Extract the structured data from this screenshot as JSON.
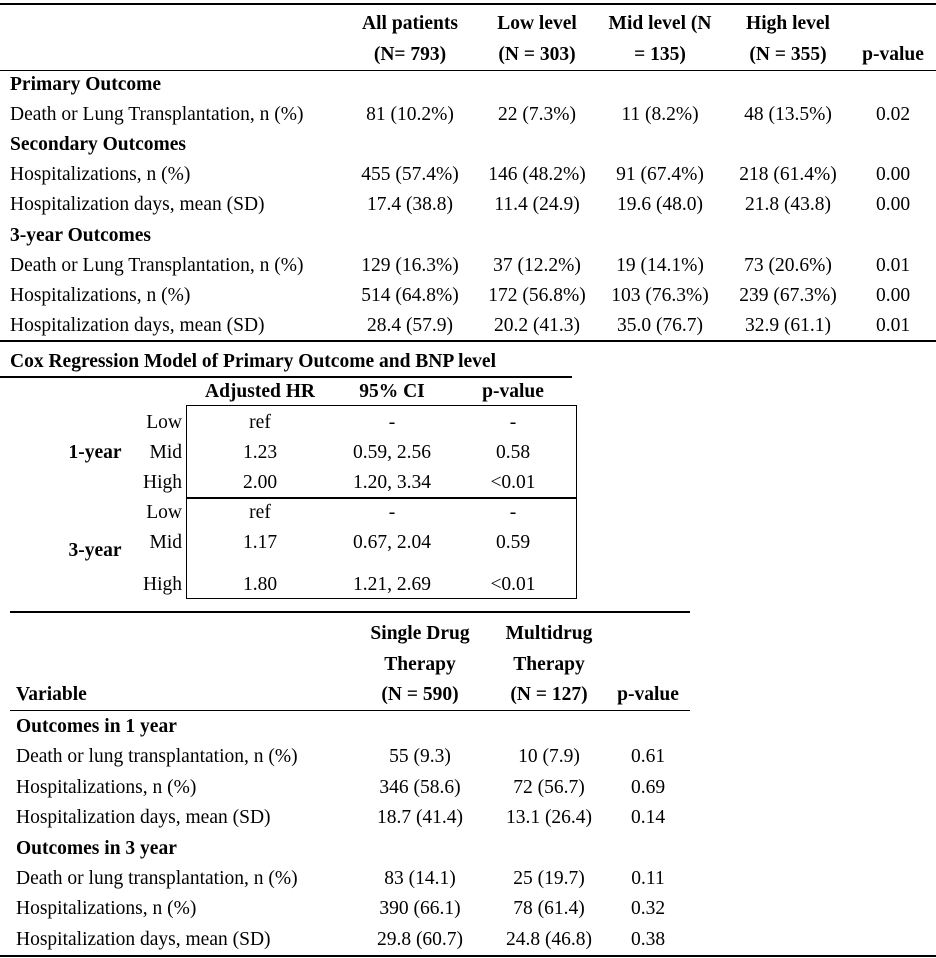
{
  "table1": {
    "headers": [
      [
        "All patients",
        "(N= 793)"
      ],
      [
        "Low level",
        "(N = 303)"
      ],
      [
        "Mid level (N",
        "= 135)"
      ],
      [
        "High level",
        "(N = 355)"
      ],
      [
        "p-value"
      ]
    ],
    "sections": [
      {
        "title": "Primary Outcome",
        "rows": [
          [
            "Death or Lung Transplantation, n (%)",
            "81 (10.2%)",
            "22 (7.3%)",
            "11 (8.2%)",
            "48 (13.5%)",
            "0.02"
          ]
        ]
      },
      {
        "title": "Secondary Outcomes",
        "rows": [
          [
            "Hospitalizations, n (%)",
            "455 (57.4%)",
            "146 (48.2%)",
            "91 (67.4%)",
            "218 (61.4%)",
            "0.00"
          ],
          [
            "Hospitalization days, mean (SD)",
            "17.4 (38.8)",
            "11.4 (24.9)",
            "19.6 (48.0)",
            "21.8 (43.8)",
            "0.00"
          ]
        ]
      },
      {
        "title": "3-year Outcomes",
        "rows": [
          [
            "Death or Lung Transplantation, n (%)",
            "129 (16.3%)",
            "37 (12.2%)",
            "19 (14.1%)",
            "73 (20.6%)",
            "0.01"
          ],
          [
            "Hospitalizations, n (%)",
            "514 (64.8%)",
            "172 (56.8%)",
            "103 (76.3%)",
            "239 (67.3%)",
            "0.00"
          ],
          [
            "Hospitalization days, mean (SD)",
            "28.4 (57.9)",
            "20.2 (41.3)",
            "35.0 (76.7)",
            "32.9 (61.1)",
            "0.01"
          ]
        ]
      }
    ]
  },
  "table2": {
    "title": "Cox Regression Model of Primary Outcome and BNP level",
    "headers": [
      "Adjusted HR",
      "95% CI",
      "p-value"
    ],
    "groups": [
      {
        "label": "1-year",
        "rows": [
          [
            "Low",
            "ref",
            "-",
            "-"
          ],
          [
            "Mid",
            "1.23",
            "0.59, 2.56",
            "0.58"
          ],
          [
            "High",
            "2.00",
            "1.20, 3.34",
            "<0.01"
          ]
        ]
      },
      {
        "label": "3-year",
        "rows": [
          [
            "Low",
            "ref",
            "-",
            "-"
          ],
          [
            "Mid",
            "1.17",
            "0.67, 2.04",
            "0.59"
          ],
          [
            "High",
            "1.80",
            "1.21, 2.69",
            "<0.01"
          ]
        ]
      }
    ]
  },
  "table3": {
    "headers": [
      [
        "Variable"
      ],
      [
        "Single Drug",
        "Therapy",
        "(N = 590)"
      ],
      [
        "Multidrug",
        "Therapy",
        "(N = 127)"
      ],
      [
        "p-value"
      ]
    ],
    "sections": [
      {
        "title": "Outcomes in 1 year",
        "rows": [
          [
            "Death or lung transplantation, n (%)",
            "55 (9.3)",
            "10 (7.9)",
            "0.61"
          ],
          [
            "Hospitalizations, n (%)",
            "346 (58.6)",
            "72 (56.7)",
            "0.69"
          ],
          [
            "Hospitalization days, mean (SD)",
            "18.7 (41.4)",
            "13.1 (26.4)",
            "0.14"
          ]
        ]
      },
      {
        "title": "Outcomes in 3 year",
        "rows": [
          [
            "Death or lung transplantation, n (%)",
            "83 (14.1)",
            "25 (19.7)",
            "0.11"
          ],
          [
            "Hospitalizations, n (%)",
            "390 (66.1)",
            "78 (61.4)",
            "0.32"
          ],
          [
            "Hospitalization days, mean (SD)",
            "29.8 (60.7)",
            "24.8 (46.8)",
            "0.38"
          ]
        ]
      }
    ]
  }
}
